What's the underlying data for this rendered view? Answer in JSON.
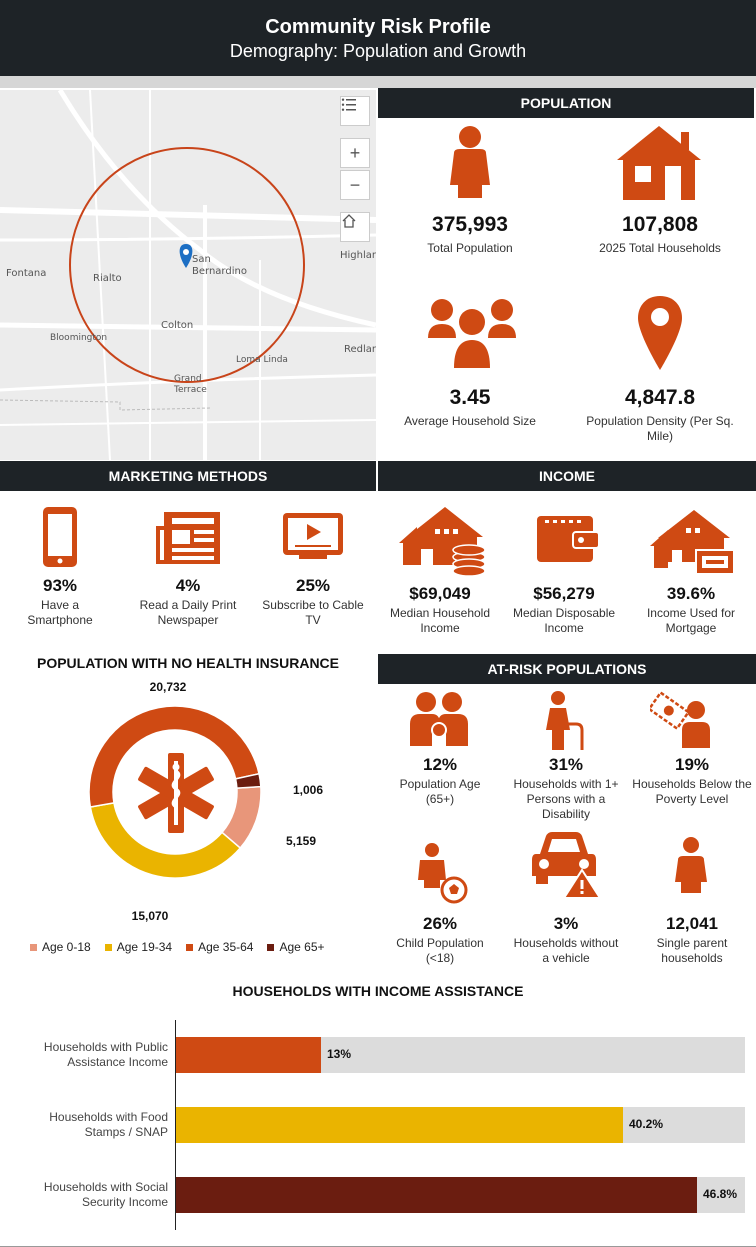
{
  "header": {
    "title": "Community Risk Profile",
    "subtitle": "Demography: Population and Growth"
  },
  "map": {
    "labels": [
      "Fontana",
      "Rialto",
      "San Bernardino",
      "Colton",
      "Bloomington",
      "Loma Linda",
      "Grand Terrace",
      "Highlan",
      "Redlar"
    ],
    "buttons": {
      "zoom_in": "+",
      "zoom_out": "−"
    }
  },
  "population": {
    "title": "POPULATION",
    "items": [
      {
        "value": "375,993",
        "label": "Total Population",
        "icon": "person-icon"
      },
      {
        "value": "107,808",
        "label": "2025 Total Households",
        "icon": "house-icon"
      },
      {
        "value": "3.45",
        "label": "Average Household Size",
        "icon": "group-icon"
      },
      {
        "value": "4,847.8",
        "label": "Population Density (Per Sq. Mile)",
        "icon": "location-pin-icon"
      }
    ]
  },
  "marketing": {
    "title": "MARKETING METHODS",
    "items": [
      {
        "value": "93%",
        "label": "Have a Smartphone",
        "icon": "smartphone-icon"
      },
      {
        "value": "4%",
        "label": "Read a Daily Print Newspaper",
        "icon": "newspaper-icon"
      },
      {
        "value": "25%",
        "label": "Subscribe to Cable TV",
        "icon": "tv-icon"
      }
    ]
  },
  "income": {
    "title": "INCOME",
    "items": [
      {
        "value": "$69,049",
        "label": "Median Household Income",
        "icon": "house-coins-icon"
      },
      {
        "value": "$56,279",
        "label": "Median Disposable Income",
        "icon": "wallet-icon"
      },
      {
        "value": "39.6%",
        "label": "Income Used for Mortgage",
        "icon": "house-cash-icon"
      }
    ]
  },
  "insurance": {
    "title": "POPULATION WITH NO HEALTH INSURANCE",
    "legend": [
      "Age 0-18",
      "Age 19-34",
      "Age 35-64",
      "Age 65+"
    ]
  },
  "at_risk": {
    "title": "AT-RISK POPULATIONS",
    "items": [
      {
        "value": "12%",
        "label": "Population Age (65+)",
        "icon": "elderly-couple-icon"
      },
      {
        "value": "31%",
        "label": "Households with 1+ Persons with a Disability",
        "icon": "cane-person-icon"
      },
      {
        "value": "19%",
        "label": "Households Below the Poverty Level",
        "icon": "poverty-icon"
      },
      {
        "value": "26%",
        "label": "Child Population (<18)",
        "icon": "child-ball-icon"
      },
      {
        "value": "3%",
        "label": "Households without a vehicle",
        "icon": "car-warning-icon"
      },
      {
        "value": "12,041",
        "label": "Single parent households",
        "icon": "single-person-icon"
      }
    ]
  },
  "assistance": {
    "title": "HOUSEHOLDS WITH INCOME ASSISTANCE"
  },
  "colors": {
    "orange": "#cf4a13",
    "yellow": "#eab400",
    "salmon": "#e8967a",
    "maroon": "#6b1d10",
    "dark": "#1e2327"
  },
  "chart_data": [
    {
      "type": "pie",
      "title": "POPULATION WITH NO HEALTH INSURANCE",
      "categories": [
        "Age 0-18",
        "Age 19-34",
        "Age 35-64",
        "Age 65+"
      ],
      "values": [
        5159,
        15070,
        20732,
        1006
      ],
      "value_labels": [
        "5,159",
        "15,070",
        "20,732",
        "1,006"
      ],
      "colors": [
        "#e8967a",
        "#eab400",
        "#cf4a13",
        "#6b1d10"
      ],
      "legend": "bottom"
    },
    {
      "type": "bar",
      "orientation": "horizontal",
      "title": "HOUSEHOLDS WITH INCOME ASSISTANCE",
      "categories": [
        "Households with Public Assistance Income",
        "Households with Food Stamps / SNAP",
        "Households with Social Security Income"
      ],
      "values": [
        13,
        40.2,
        46.8
      ],
      "value_labels": [
        "13%",
        "40.2%",
        "46.8%"
      ],
      "xlim": [
        0,
        50
      ],
      "colors": [
        "#cf4a13",
        "#eab400",
        "#6b1d10"
      ]
    }
  ]
}
